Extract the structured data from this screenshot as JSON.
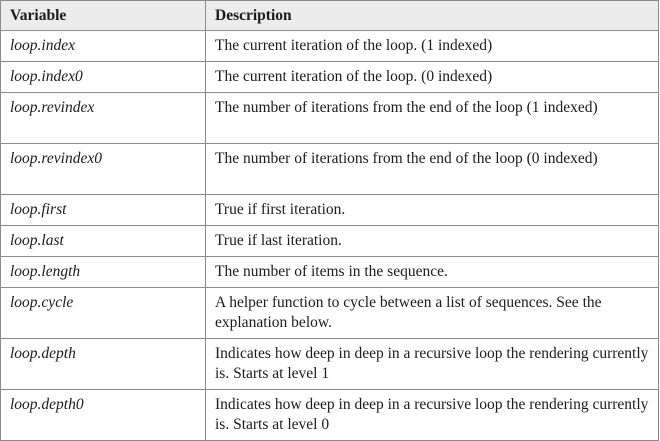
{
  "table": {
    "headers": [
      "Variable",
      "Description"
    ],
    "rows": [
      {
        "variable": "loop.index",
        "description": "The current iteration of the loop. (1 indexed)"
      },
      {
        "variable": "loop.index0",
        "description": "The current iteration of the loop. (0 indexed)"
      },
      {
        "variable": "loop.revindex",
        "description": "The number of iterations from the end of the loop (1 indexed)"
      },
      {
        "variable": "loop.revindex0",
        "description": "The number of iterations from the end of the loop (0 indexed)"
      },
      {
        "variable": "loop.first",
        "description": "True if first iteration."
      },
      {
        "variable": "loop.last",
        "description": "True if last iteration."
      },
      {
        "variable": "loop.length",
        "description": "The number of items in the sequence."
      },
      {
        "variable": "loop.cycle",
        "description": "A helper function to cycle between a list of sequences. See the explanation below."
      },
      {
        "variable": "loop.depth",
        "description": "Indicates how deep in deep in a recursive loop the rendering currently is. Starts at level 1"
      },
      {
        "variable": "loop.depth0",
        "description": "Indicates how deep in deep in a recursive loop the rendering currently is. Starts at level 0"
      }
    ]
  }
}
